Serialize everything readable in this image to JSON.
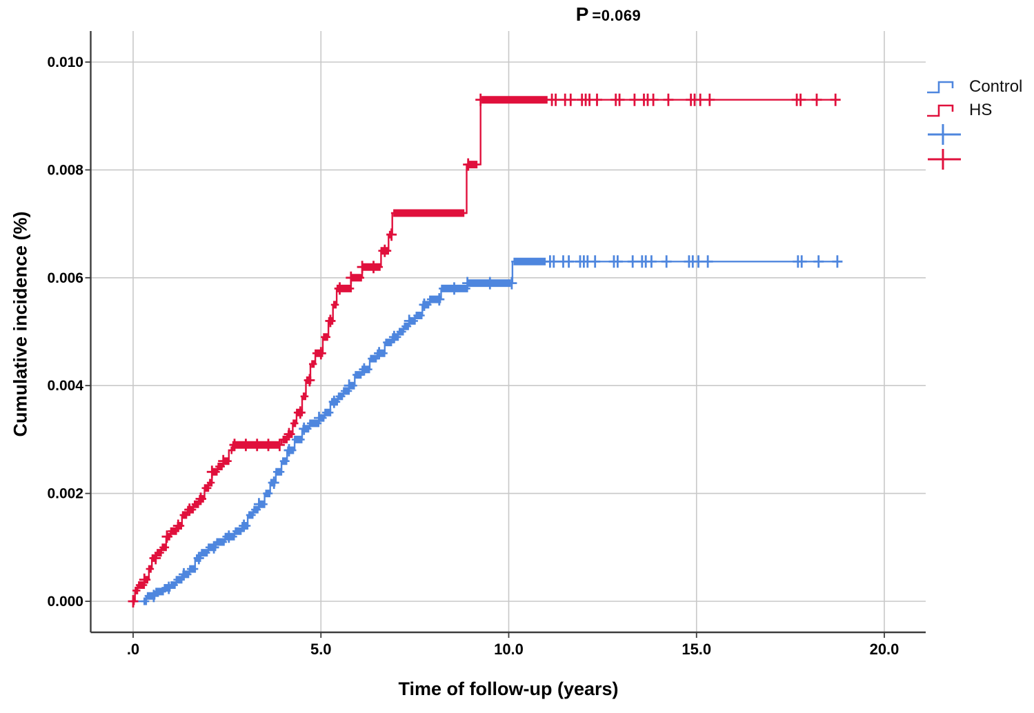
{
  "figure": {
    "title_parts": [
      "P",
      "=0.069"
    ]
  },
  "chart_data": {
    "type": "line",
    "subtype": "kaplan-meier-cumulative-incidence-step",
    "title": "P =0.069",
    "p_value": "0.069",
    "xlabel": "Time of follow-up (years)",
    "ylabel": "Cumulative incidence (%)",
    "xlim": [
      -1.1,
      21.1
    ],
    "ylim": [
      -0.0006,
      0.0106
    ],
    "grid": true,
    "legend_position": "right",
    "x_axis": {
      "tick_values": [
        0,
        5,
        10,
        15,
        20
      ],
      "tick_labels": [
        ".0",
        "5.0",
        "10.0",
        "15.0",
        "20.0"
      ]
    },
    "y_axis": {
      "tick_values": [
        0,
        0.002,
        0.004,
        0.006,
        0.008,
        0.01
      ],
      "tick_labels": [
        "0.000",
        "0.002",
        "0.004",
        "0.006",
        "0.008",
        "0.010"
      ]
    },
    "colors": {
      "control": "#4e86de",
      "hs": "#e0103c",
      "grid": "#c8c8c8",
      "axis": "#3c3c3c",
      "text": "#000000"
    },
    "legend_entries": [
      {
        "name": "control",
        "label": "Control",
        "symbol": "step",
        "color": "#4e86de"
      },
      {
        "name": "hs",
        "label": "HS",
        "symbol": "step",
        "color": "#e0103c"
      },
      {
        "name": "control-censor",
        "label": "",
        "symbol": "plus",
        "color": "#4e86de"
      },
      {
        "name": "hs-censor",
        "label": "",
        "symbol": "plus",
        "color": "#e0103c"
      }
    ],
    "series": [
      {
        "name": "Control",
        "color": "#4e86de",
        "end_time": 18.85,
        "points": [
          [
            0,
            0
          ],
          [
            0.35,
            0.0001
          ],
          [
            0.6,
            0.00018
          ],
          [
            0.8,
            0.00025
          ],
          [
            1.0,
            0.0003
          ],
          [
            1.15,
            0.0004
          ],
          [
            1.3,
            0.0005
          ],
          [
            1.5,
            0.0006
          ],
          [
            1.65,
            0.0008
          ],
          [
            1.8,
            0.0009
          ],
          [
            2.0,
            0.001
          ],
          [
            2.2,
            0.0011
          ],
          [
            2.45,
            0.0012
          ],
          [
            2.7,
            0.0013
          ],
          [
            2.9,
            0.0014
          ],
          [
            3.05,
            0.0016
          ],
          [
            3.2,
            0.0017
          ],
          [
            3.35,
            0.0018
          ],
          [
            3.5,
            0.002
          ],
          [
            3.65,
            0.0022
          ],
          [
            3.8,
            0.0024
          ],
          [
            3.95,
            0.0026
          ],
          [
            4.1,
            0.0028
          ],
          [
            4.3,
            0.003
          ],
          [
            4.5,
            0.0032
          ],
          [
            4.7,
            0.0033
          ],
          [
            4.95,
            0.0034
          ],
          [
            5.1,
            0.0035
          ],
          [
            5.25,
            0.0037
          ],
          [
            5.45,
            0.0038
          ],
          [
            5.6,
            0.0039
          ],
          [
            5.75,
            0.004
          ],
          [
            5.9,
            0.0042
          ],
          [
            6.1,
            0.0043
          ],
          [
            6.3,
            0.0045
          ],
          [
            6.5,
            0.0046
          ],
          [
            6.7,
            0.0048
          ],
          [
            6.9,
            0.0049
          ],
          [
            7.05,
            0.005
          ],
          [
            7.2,
            0.0051
          ],
          [
            7.35,
            0.0052
          ],
          [
            7.5,
            0.0053
          ],
          [
            7.7,
            0.0055
          ],
          [
            7.9,
            0.0056
          ],
          [
            8.2,
            0.0058
          ],
          [
            8.9,
            0.0059
          ],
          [
            10.1,
            0.0063
          ]
        ],
        "censor_bands": [
          [
            0.3,
            8.9
          ],
          [
            8.95,
            10.05
          ],
          [
            10.15,
            11.0
          ]
        ],
        "censor_marks": [
          0.55,
          0.95,
          1.35,
          1.75,
          2.15,
          2.55,
          2.95,
          3.35,
          3.75,
          4.15,
          4.55,
          4.95,
          5.35,
          5.75,
          6.15,
          6.55,
          6.95,
          7.35,
          7.75,
          8.15,
          8.55,
          8.9,
          9.5,
          10.08,
          11.1,
          11.2,
          11.45,
          11.6,
          11.9,
          12.0,
          12.1,
          12.3,
          12.8,
          12.9,
          13.3,
          13.55,
          13.65,
          13.8,
          14.2,
          14.8,
          14.9,
          15.05,
          15.3,
          17.7,
          17.8,
          18.25,
          18.75
        ]
      },
      {
        "name": "HS",
        "color": "#e0103c",
        "end_time": 18.8,
        "points": [
          [
            0,
            0
          ],
          [
            0.05,
            0.0002
          ],
          [
            0.12,
            0.0003
          ],
          [
            0.3,
            0.0004
          ],
          [
            0.42,
            0.0006
          ],
          [
            0.5,
            0.0008
          ],
          [
            0.62,
            0.0009
          ],
          [
            0.75,
            0.001
          ],
          [
            0.88,
            0.0012
          ],
          [
            1.0,
            0.0013
          ],
          [
            1.15,
            0.0014
          ],
          [
            1.3,
            0.0016
          ],
          [
            1.45,
            0.0017
          ],
          [
            1.6,
            0.0018
          ],
          [
            1.75,
            0.0019
          ],
          [
            1.9,
            0.0021
          ],
          [
            2.0,
            0.0022
          ],
          [
            2.1,
            0.0024
          ],
          [
            2.25,
            0.0025
          ],
          [
            2.4,
            0.0026
          ],
          [
            2.55,
            0.0028
          ],
          [
            2.65,
            0.0029
          ],
          [
            3.95,
            0.003
          ],
          [
            4.1,
            0.0031
          ],
          [
            4.25,
            0.0033
          ],
          [
            4.35,
            0.0035
          ],
          [
            4.5,
            0.0038
          ],
          [
            4.6,
            0.0041
          ],
          [
            4.72,
            0.0044
          ],
          [
            4.85,
            0.0046
          ],
          [
            5.05,
            0.0049
          ],
          [
            5.2,
            0.0052
          ],
          [
            5.32,
            0.0055
          ],
          [
            5.42,
            0.0058
          ],
          [
            5.8,
            0.006
          ],
          [
            6.1,
            0.0062
          ],
          [
            6.6,
            0.0065
          ],
          [
            6.8,
            0.0068
          ],
          [
            6.9,
            0.0072
          ],
          [
            8.88,
            0.0081
          ],
          [
            9.25,
            0.0093
          ]
        ],
        "censor_bands": [
          [
            0.02,
            2.55
          ],
          [
            2.62,
            3.92
          ],
          [
            4.0,
            6.88
          ],
          [
            6.95,
            8.8
          ],
          [
            8.92,
            9.18
          ],
          [
            9.3,
            11.05
          ]
        ],
        "censor_marks": [
          0.0,
          0.3,
          0.6,
          0.9,
          1.2,
          1.5,
          1.8,
          2.1,
          2.4,
          2.7,
          3.0,
          3.3,
          3.6,
          3.9,
          4.15,
          4.45,
          4.7,
          5.0,
          5.25,
          5.5,
          5.8,
          6.1,
          6.4,
          6.7,
          6.88,
          8.92,
          9.25,
          11.15,
          11.25,
          11.5,
          11.65,
          11.95,
          12.05,
          12.15,
          12.35,
          12.85,
          12.95,
          13.35,
          13.6,
          13.7,
          13.85,
          14.25,
          14.85,
          14.95,
          15.1,
          15.35,
          17.67,
          17.77,
          18.2,
          18.7
        ]
      }
    ]
  }
}
